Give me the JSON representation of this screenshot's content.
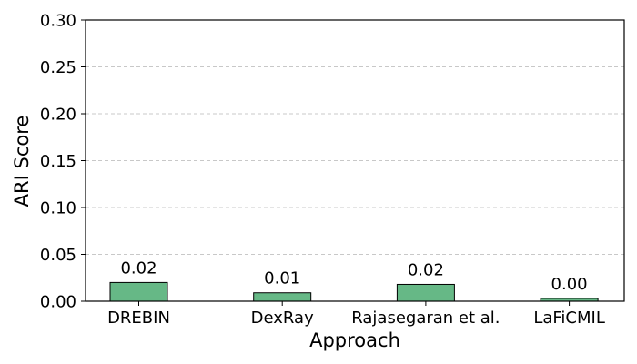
{
  "chart_data": {
    "type": "bar",
    "categories": [
      "DREBIN",
      "DexRay",
      "Rajasegaran et al.",
      "LaFiCMIL"
    ],
    "values": [
      0.02,
      0.009,
      0.018,
      0.003
    ],
    "data_labels": [
      "0.02",
      "0.01",
      "0.02",
      "0.00"
    ],
    "xlabel": "Approach",
    "ylabel": "ARI Score",
    "ylim": [
      0,
      0.3
    ],
    "yticks": [
      "0.00",
      "0.05",
      "0.10",
      "0.15",
      "0.20",
      "0.25",
      "0.30"
    ],
    "grid": "y-dashed",
    "bar_color": "#66b886",
    "bar_edge_color": "#000000",
    "grid_color": "#c8c8c8"
  }
}
